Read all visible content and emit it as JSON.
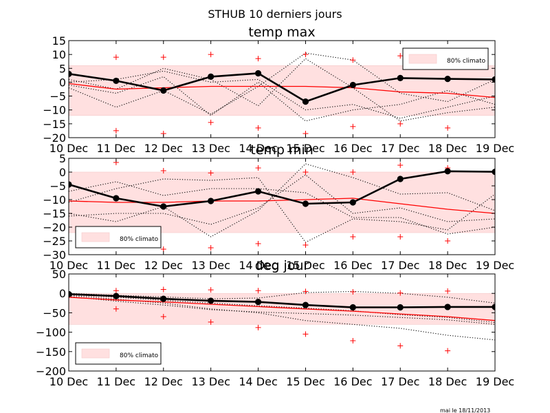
{
  "figure": {
    "suptitle": "STHUB 10 derniers jours",
    "footer": "mai le 18/11/2013",
    "legend_label": "80% climato"
  },
  "colors": {
    "observed": "#000000",
    "climato_median": "#ff0000",
    "extremes_marker": "#ff0000",
    "climato_band": "#ffe0e0",
    "ensemble": "#000000"
  },
  "chart_data": [
    {
      "type": "line",
      "title": "temp max",
      "x": [
        "10 Dec",
        "11 Dec",
        "12 Dec",
        "13 Dec",
        "14 Dec",
        "15 Dec",
        "16 Dec",
        "17 Dec",
        "18 Dec",
        "19 Dec"
      ],
      "ylim": [
        -20,
        15
      ],
      "yticks": [
        15,
        10,
        5,
        0,
        -5,
        -10,
        -15,
        -20
      ],
      "legend_loc": "upper right",
      "band": [
        -12,
        6
      ],
      "observed": [
        3,
        0.5,
        -3,
        2,
        3.2,
        -7,
        -1,
        1.5,
        1.2,
        1
      ],
      "climato_median": [
        -0.5,
        -2.5,
        -2,
        -1.5,
        -1.5,
        -1.5,
        -2,
        -3.5,
        -4,
        -5.5
      ],
      "plus_upper": [
        null,
        9,
        9,
        10,
        8.5,
        10,
        8,
        9.5,
        null,
        null
      ],
      "plus_lower": [
        null,
        -17.5,
        -18.5,
        -14.5,
        -16.5,
        -18.5,
        -16,
        -15,
        -16.5,
        null
      ],
      "ensemble": [
        [
          -2,
          -9,
          -3,
          -11.5,
          -1.5,
          10.5,
          8,
          -4,
          -7,
          1
        ],
        [
          1,
          -2.5,
          5,
          1,
          -8.5,
          8.5,
          -2,
          -14,
          -11,
          -9
        ],
        [
          -1,
          -4,
          2,
          -12,
          0,
          -14,
          -10,
          -8,
          -3,
          -8
        ],
        [
          0,
          1,
          4,
          0,
          1,
          -10,
          -8,
          -13,
          -9,
          -5
        ]
      ]
    },
    {
      "type": "line",
      "title": "temp min",
      "x": [
        "10 Dec",
        "11 Dec",
        "12 Dec",
        "13 Dec",
        "14 Dec",
        "15 Dec",
        "16 Dec",
        "17 Dec",
        "18 Dec",
        "19 Dec"
      ],
      "ylim": [
        -30,
        5
      ],
      "yticks": [
        5,
        0,
        -5,
        -10,
        -15,
        -20,
        -25,
        -30
      ],
      "legend_loc": "lower left",
      "band": [
        -22,
        0
      ],
      "observed": [
        -4.5,
        -9.5,
        -12.5,
        -10.5,
        -7,
        -11.5,
        -11,
        -2.5,
        0.3,
        0.1
      ],
      "climato_median": [
        -10.5,
        -11,
        -11,
        -10.5,
        -10.5,
        -10,
        -9.5,
        -11.5,
        -13.5,
        -15
      ],
      "plus_upper": [
        null,
        3.5,
        0.5,
        -0.3,
        1.5,
        0,
        0,
        2.5,
        1.5,
        null
      ],
      "plus_lower": [
        null,
        null,
        -28,
        -27.5,
        -26,
        -26.5,
        -23.5,
        -23.5,
        -25,
        null
      ],
      "ensemble": [
        [
          -7,
          -3.5,
          -8.5,
          -6,
          -6,
          -7.5,
          -16.5,
          -16.5,
          -22.5,
          -20
        ],
        [
          -15,
          -18,
          -12.5,
          -23.5,
          -14,
          3,
          -2,
          -8,
          -7.5,
          -14
        ],
        [
          -11,
          -6,
          -2.5,
          -3,
          -2,
          -25.5,
          -17,
          -18,
          -21,
          -8
        ],
        [
          -16,
          -15,
          -15,
          -19,
          -13,
          -1,
          -15,
          -13,
          -18,
          -17
        ]
      ]
    },
    {
      "type": "line",
      "title": "deg jour",
      "x": [
        "10 Dec",
        "11 Dec",
        "12 Dec",
        "13 Dec",
        "14 Dec",
        "15 Dec",
        "16 Dec",
        "17 Dec",
        "18 Dec",
        "19 Dec"
      ],
      "ylim": [
        -200,
        50
      ],
      "yticks": [
        50,
        0,
        -50,
        -100,
        -150,
        -200
      ],
      "legend_loc": "lower left",
      "band": [
        -80,
        0
      ],
      "observed": [
        -2,
        -7,
        -14,
        -19,
        -22,
        -30,
        -36,
        -36,
        -35,
        -35
      ],
      "climato_median": [
        -10,
        -17,
        -22,
        -28,
        -34,
        -40,
        -46,
        -53,
        -60,
        -70
      ],
      "plus_upper": [
        null,
        7,
        10,
        9,
        7,
        5,
        4,
        1,
        6,
        null
      ],
      "plus_lower": [
        null,
        -40,
        -60,
        -74,
        -88,
        -105,
        -122,
        -135,
        -148,
        null
      ],
      "ensemble": [
        [
          0,
          -5,
          -9,
          -14,
          -12,
          2,
          5,
          0,
          -10,
          -25
        ],
        [
          -5,
          -15,
          -25,
          -40,
          -50,
          -70,
          -80,
          -90,
          -108,
          -120
        ],
        [
          -8,
          -20,
          -30,
          -42,
          -48,
          -52,
          -56,
          -62,
          -68,
          -80
        ],
        [
          -3,
          -10,
          -18,
          -25,
          -32,
          -38,
          -45,
          -55,
          -62,
          -75
        ]
      ]
    }
  ]
}
